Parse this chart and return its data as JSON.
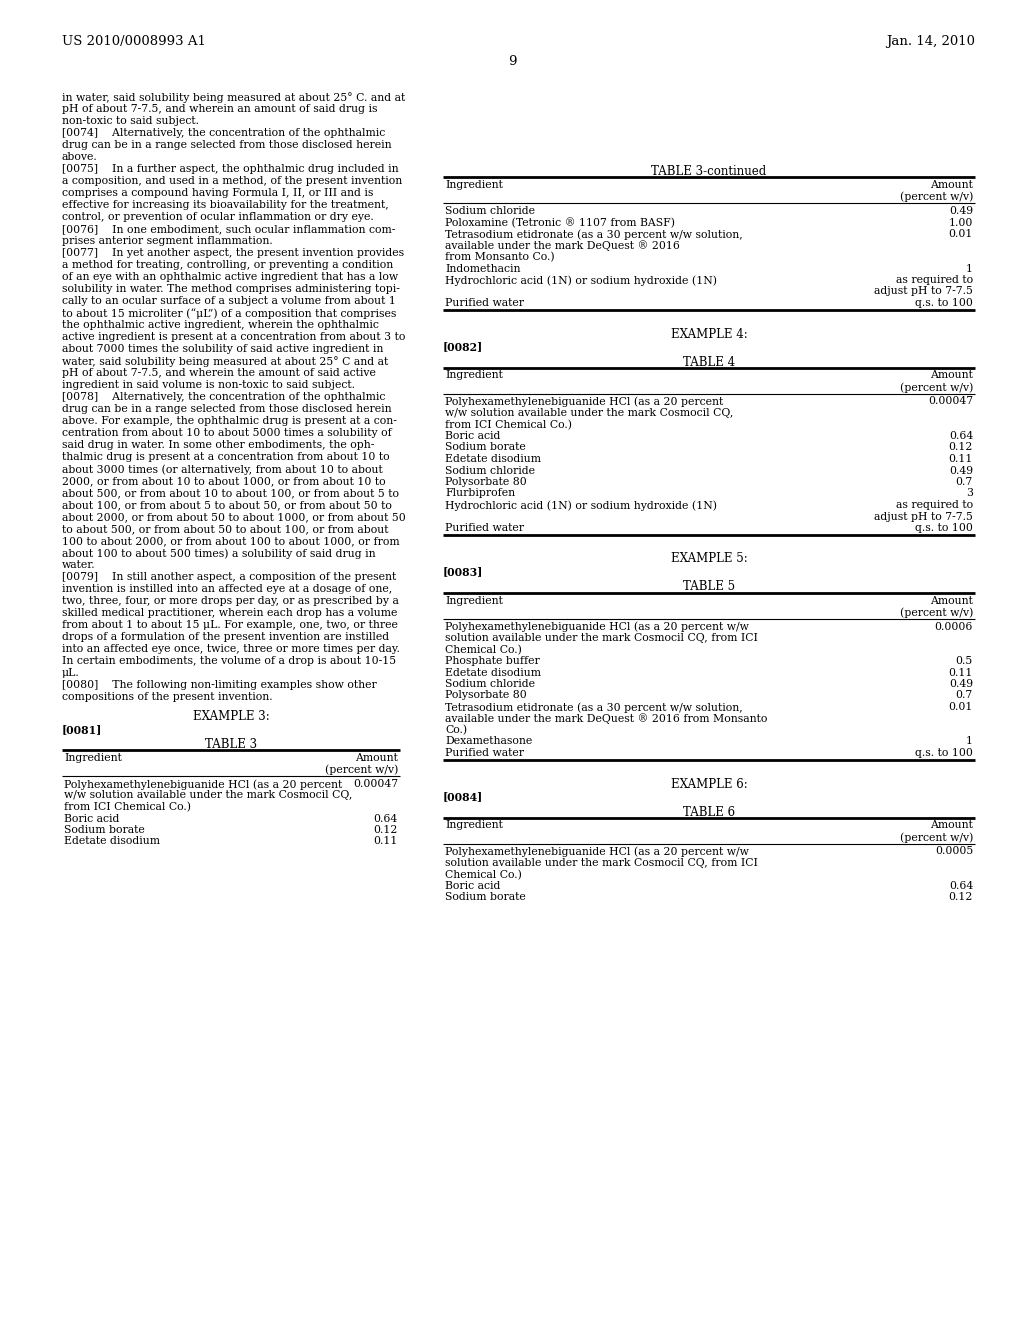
{
  "page_header_left": "US 2010/0008993 A1",
  "page_header_right": "Jan. 14, 2010",
  "page_number": "9",
  "bg_color": "#ffffff",
  "left_col_lines": [
    "in water, said solubility being measured at about 25° C. and at",
    "pH of about 7-7.5, and wherein an amount of said drug is",
    "non-toxic to said subject.",
    "[0074]    Alternatively, the concentration of the ophthalmic",
    "drug can be in a range selected from those disclosed herein",
    "above.",
    "[0075]    In a further aspect, the ophthalmic drug included in",
    "a composition, and used in a method, of the present invention",
    "comprises a compound having Formula I, II, or III and is",
    "effective for increasing its bioavailability for the treatment,",
    "control, or prevention of ocular inflammation or dry eye.",
    "[0076]    In one embodiment, such ocular inflammation com-",
    "prises anterior segment inflammation.",
    "[0077]    In yet another aspect, the present invention provides",
    "a method for treating, controlling, or preventing a condition",
    "of an eye with an ophthalmic active ingredient that has a low",
    "solubility in water. The method comprises administering topi-",
    "cally to an ocular surface of a subject a volume from about 1",
    "to about 15 microliter (“μL”) of a composition that comprises",
    "the ophthalmic active ingredient, wherein the ophthalmic",
    "active ingredient is present at a concentration from about 3 to",
    "about 7000 times the solubility of said active ingredient in",
    "water, said solubility being measured at about 25° C and at",
    "pH of about 7-7.5, and wherein the amount of said active",
    "ingredient in said volume is non-toxic to said subject.",
    "[0078]    Alternatively, the concentration of the ophthalmic",
    "drug can be in a range selected from those disclosed herein",
    "above. For example, the ophthalmic drug is present at a con-",
    "centration from about 10 to about 5000 times a solubility of",
    "said drug in water. In some other embodiments, the oph-",
    "thalmic drug is present at a concentration from about 10 to",
    "about 3000 times (or alternatively, from about 10 to about",
    "2000, or from about 10 to about 1000, or from about 10 to",
    "about 500, or from about 10 to about 100, or from about 5 to",
    "about 100, or from about 5 to about 50, or from about 50 to",
    "about 2000, or from about 50 to about 1000, or from about 50",
    "to about 500, or from about 50 to about 100, or from about",
    "100 to about 2000, or from about 100 to about 1000, or from",
    "about 100 to about 500 times) a solubility of said drug in",
    "water.",
    "[0079]    In still another aspect, a composition of the present",
    "invention is instilled into an affected eye at a dosage of one,",
    "two, three, four, or more drops per day, or as prescribed by a",
    "skilled medical practitioner, wherein each drop has a volume",
    "from about 1 to about 15 μL. For example, one, two, or three",
    "drops of a formulation of the present invention are instilled",
    "into an affected eye once, twice, three or more times per day.",
    "In certain embodiments, the volume of a drop is about 10-15",
    "μL.",
    "[0080]    The following non-limiting examples show other",
    "compositions of the present invention."
  ],
  "table3_continued": {
    "title": "TABLE 3-continued",
    "col1_header": "Ingredient",
    "col2_header": "Amount\n(percent w/v)",
    "rows": [
      [
        "Sodium chloride",
        "0.49"
      ],
      [
        "Poloxamine (Tetronic ® 1107 from BASF)",
        "1.00"
      ],
      [
        "Tetrasodium etidronate (as a 30 percent w/w solution,",
        "0.01"
      ],
      [
        "available under the mark DeQuest ® 2016",
        ""
      ],
      [
        "from Monsanto Co.)",
        ""
      ],
      [
        "Indomethacin",
        "1"
      ],
      [
        "Hydrochloric acid (1N) or sodium hydroxide (1N)",
        "as required to"
      ],
      [
        "",
        "adjust pH to 7-7.5"
      ],
      [
        "Purified water",
        "q.s. to 100"
      ]
    ]
  },
  "example4": {
    "label": "EXAMPLE 4:",
    "ref": "[0082]",
    "table_title": "TABLE 4",
    "col1_header": "Ingredient",
    "col2_header": "Amount\n(percent w/v)",
    "rows": [
      [
        "Polyhexamethylenebiguanide HCl (as a 20 percent",
        "0.00047"
      ],
      [
        "w/w solution available under the mark Cosmocil CQ,",
        ""
      ],
      [
        "from ICI Chemical Co.)",
        ""
      ],
      [
        "Boric acid",
        "0.64"
      ],
      [
        "Sodium borate",
        "0.12"
      ],
      [
        "Edetate disodium",
        "0.11"
      ],
      [
        "Sodium chloride",
        "0.49"
      ],
      [
        "Polysorbate 80",
        "0.7"
      ],
      [
        "Flurbiprofen",
        "3"
      ],
      [
        "Hydrochloric acid (1N) or sodium hydroxide (1N)",
        "as required to"
      ],
      [
        "",
        "adjust pH to 7-7.5"
      ],
      [
        "Purified water",
        "q.s. to 100"
      ]
    ]
  },
  "example5": {
    "label": "EXAMPLE 5:",
    "ref": "[0083]",
    "table_title": "TABLE 5",
    "col1_header": "Ingredient",
    "col2_header": "Amount\n(percent w/v)",
    "rows": [
      [
        "Polyhexamethylenebiguanide HCl (as a 20 percent w/w",
        "0.0006"
      ],
      [
        "solution available under the mark Cosmocil CQ, from ICI",
        ""
      ],
      [
        "Chemical Co.)",
        ""
      ],
      [
        "Phosphate buffer",
        "0.5"
      ],
      [
        "Edetate disodium",
        "0.11"
      ],
      [
        "Sodium chloride",
        "0.49"
      ],
      [
        "Polysorbate 80",
        "0.7"
      ],
      [
        "Tetrasodium etidronate (as a 30 percent w/w solution,",
        "0.01"
      ],
      [
        "available under the mark DeQuest ® 2016 from Monsanto",
        ""
      ],
      [
        "Co.)",
        ""
      ],
      [
        "Dexamethasone",
        "1"
      ],
      [
        "Purified water",
        "q.s. to 100"
      ]
    ]
  },
  "example6": {
    "label": "EXAMPLE 6:",
    "ref": "[0084]",
    "table_title": "TABLE 6",
    "col1_header": "Ingredient",
    "col2_header": "Amount\n(percent w/v)",
    "rows": [
      [
        "Polyhexamethylenebiguanide HCl (as a 20 percent w/w",
        "0.0005"
      ],
      [
        "solution available under the mark Cosmocil CQ, from ICI",
        ""
      ],
      [
        "Chemical Co.)",
        ""
      ],
      [
        "Boric acid",
        "0.64"
      ],
      [
        "Sodium borate",
        "0.12"
      ]
    ]
  },
  "left_table3": {
    "title": "TABLE 3",
    "col1_header": "Ingredient",
    "col2_header": "Amount\n(percent w/v)",
    "rows": [
      [
        "Polyhexamethylenebiguanide HCl (as a 20 percent",
        "0.00047"
      ],
      [
        "w/w solution available under the mark Cosmocil CQ,",
        ""
      ],
      [
        "from ICI Chemical Co.)",
        ""
      ],
      [
        "Boric acid",
        "0.64"
      ],
      [
        "Sodium borate",
        "0.12"
      ],
      [
        "Edetate disodium",
        "0.11"
      ]
    ]
  }
}
